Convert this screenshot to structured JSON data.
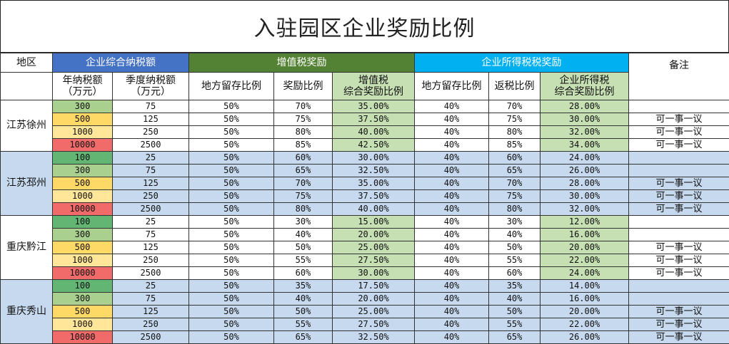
{
  "title": "入驻园区企业奖励比例",
  "header": {
    "region": "地区",
    "group_tax": "企业综合纳税额",
    "group_vat": "增值税奖励",
    "group_cit": "企业所得税税奖励",
    "remark": "备注",
    "annual_tax": "年纳税额\n（万元）",
    "quarter_tax": "季度纳税额\n（万元）",
    "vat_local": "地方留存比例",
    "vat_reward": "奖励比例",
    "vat_total": "增值税\n综合奖励比例",
    "cit_local": "地方留存比例",
    "cit_refund": "返税比例",
    "cit_total": "企业所得税\n综合奖励比例"
  },
  "groups": [
    {
      "region": "江苏徐州",
      "rows": [
        {
          "annual": "300",
          "quarter": "75",
          "vat_local": "50%",
          "vat_reward": "70%",
          "vat_total": "35.00%",
          "cit_local": "40%",
          "cit_refund": "70%",
          "cit_total": "28.00%",
          "remark": ""
        },
        {
          "annual": "500",
          "quarter": "125",
          "vat_local": "50%",
          "vat_reward": "75%",
          "vat_total": "37.50%",
          "cit_local": "40%",
          "cit_refund": "75%",
          "cit_total": "30.00%",
          "remark": "可一事一议"
        },
        {
          "annual": "1000",
          "quarter": "250",
          "vat_local": "50%",
          "vat_reward": "80%",
          "vat_total": "40.00%",
          "cit_local": "40%",
          "cit_refund": "80%",
          "cit_total": "32.00%",
          "remark": "可一事一议"
        },
        {
          "annual": "10000",
          "quarter": "2500",
          "vat_local": "50%",
          "vat_reward": "85%",
          "vat_total": "42.50%",
          "cit_local": "40%",
          "cit_refund": "85%",
          "cit_total": "34.00%",
          "remark": "可一事一议"
        }
      ]
    },
    {
      "region": "江苏邳州",
      "rows": [
        {
          "annual": "100",
          "quarter": "25",
          "vat_local": "50%",
          "vat_reward": "60%",
          "vat_total": "30.00%",
          "cit_local": "40%",
          "cit_refund": "60%",
          "cit_total": "24.00%",
          "remark": ""
        },
        {
          "annual": "300",
          "quarter": "75",
          "vat_local": "50%",
          "vat_reward": "65%",
          "vat_total": "32.50%",
          "cit_local": "40%",
          "cit_refund": "65%",
          "cit_total": "26.00%",
          "remark": ""
        },
        {
          "annual": "500",
          "quarter": "125",
          "vat_local": "50%",
          "vat_reward": "70%",
          "vat_total": "35.00%",
          "cit_local": "40%",
          "cit_refund": "70%",
          "cit_total": "28.00%",
          "remark": "可一事一议"
        },
        {
          "annual": "1000",
          "quarter": "250",
          "vat_local": "50%",
          "vat_reward": "75%",
          "vat_total": "37.50%",
          "cit_local": "40%",
          "cit_refund": "75%",
          "cit_total": "30.00%",
          "remark": "可一事一议"
        },
        {
          "annual": "10000",
          "quarter": "2500",
          "vat_local": "50%",
          "vat_reward": "80%",
          "vat_total": "40.00%",
          "cit_local": "40%",
          "cit_refund": "80%",
          "cit_total": "32.00%",
          "remark": "可一事一议"
        }
      ]
    },
    {
      "region": "重庆黔江",
      "rows": [
        {
          "annual": "100",
          "quarter": "25",
          "vat_local": "50%",
          "vat_reward": "30%",
          "vat_total": "15.00%",
          "cit_local": "40%",
          "cit_refund": "30%",
          "cit_total": "12.00%",
          "remark": ""
        },
        {
          "annual": "300",
          "quarter": "75",
          "vat_local": "50%",
          "vat_reward": "40%",
          "vat_total": "20.00%",
          "cit_local": "40%",
          "cit_refund": "40%",
          "cit_total": "16.00%",
          "remark": ""
        },
        {
          "annual": "500",
          "quarter": "125",
          "vat_local": "50%",
          "vat_reward": "50%",
          "vat_total": "25.00%",
          "cit_local": "40%",
          "cit_refund": "50%",
          "cit_total": "20.00%",
          "remark": "可一事一议"
        },
        {
          "annual": "1000",
          "quarter": "250",
          "vat_local": "50%",
          "vat_reward": "55%",
          "vat_total": "27.50%",
          "cit_local": "40%",
          "cit_refund": "55%",
          "cit_total": "22.00%",
          "remark": "可一事一议"
        },
        {
          "annual": "10000",
          "quarter": "2500",
          "vat_local": "50%",
          "vat_reward": "60%",
          "vat_total": "30.00%",
          "cit_local": "40%",
          "cit_refund": "60%",
          "cit_total": "24.00%",
          "remark": "可一事一议"
        }
      ]
    },
    {
      "region": "重庆秀山",
      "rows": [
        {
          "annual": "100",
          "quarter": "25",
          "vat_local": "50%",
          "vat_reward": "35%",
          "vat_total": "17.50%",
          "cit_local": "40%",
          "cit_refund": "35%",
          "cit_total": "14.00%",
          "remark": ""
        },
        {
          "annual": "300",
          "quarter": "75",
          "vat_local": "50%",
          "vat_reward": "40%",
          "vat_total": "20.00%",
          "cit_local": "40%",
          "cit_refund": "40%",
          "cit_total": "16.00%",
          "remark": ""
        },
        {
          "annual": "500",
          "quarter": "125",
          "vat_local": "50%",
          "vat_reward": "50%",
          "vat_total": "25.00%",
          "cit_local": "40%",
          "cit_refund": "50%",
          "cit_total": "20.00%",
          "remark": "可一事一议"
        },
        {
          "annual": "1000",
          "quarter": "250",
          "vat_local": "50%",
          "vat_reward": "55%",
          "vat_total": "27.50%",
          "cit_local": "40%",
          "cit_refund": "55%",
          "cit_total": "22.00%",
          "remark": "可一事一议"
        },
        {
          "annual": "10000",
          "quarter": "2500",
          "vat_local": "50%",
          "vat_reward": "65%",
          "vat_total": "32.50%",
          "cit_local": "40%",
          "cit_refund": "65%",
          "cit_total": "26.00%",
          "remark": "可一事一议"
        }
      ]
    }
  ],
  "colors": {
    "tax_header": "#4472c4",
    "vat_header": "#548235",
    "cit_header": "#00b0f0",
    "total_column": "#c6e0b4",
    "band_blue": "#c6d9ee",
    "level_100": "#63b574",
    "level_300": "#a9d08e",
    "level_500": "#ffd966",
    "level_1000": "#ffe699",
    "level_10000": "#f16b6b"
  }
}
